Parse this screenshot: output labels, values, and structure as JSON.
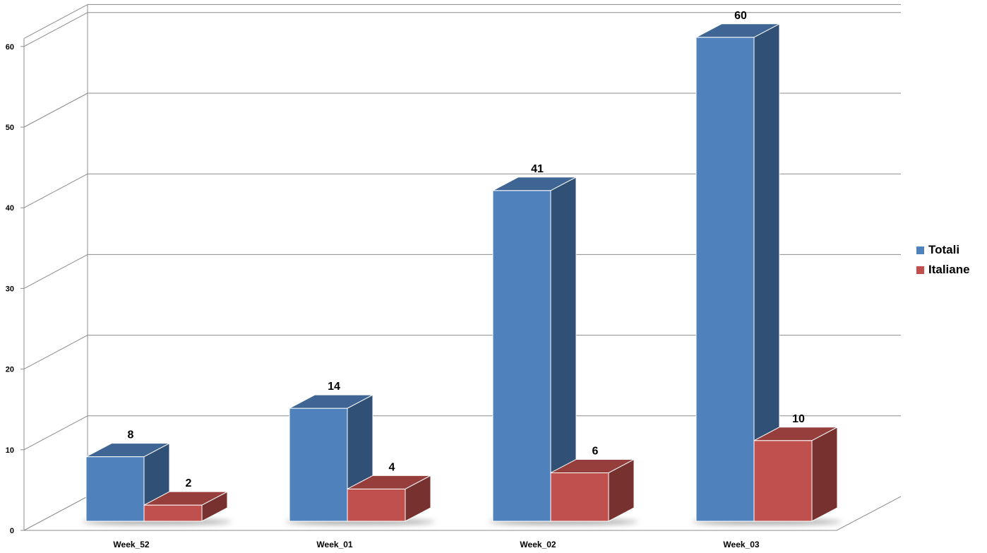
{
  "chart_data": {
    "type": "bar",
    "style": "3d-clustered-column",
    "categories": [
      "Week_52",
      "Week_01",
      "Week_02",
      "Week_03"
    ],
    "series": [
      {
        "name": "Totali",
        "values": [
          8,
          14,
          41,
          60
        ],
        "color": "#4f81bd"
      },
      {
        "name": "Italiane",
        "values": [
          2,
          4,
          6,
          10
        ],
        "color": "#c0504d"
      }
    ],
    "title": "",
    "xlabel": "",
    "ylabel": "",
    "ylim": [
      0,
      60
    ],
    "yticks": [
      0,
      10,
      20,
      30,
      40,
      50,
      60
    ],
    "grid": true,
    "legend_position": "right",
    "data_labels": true
  }
}
